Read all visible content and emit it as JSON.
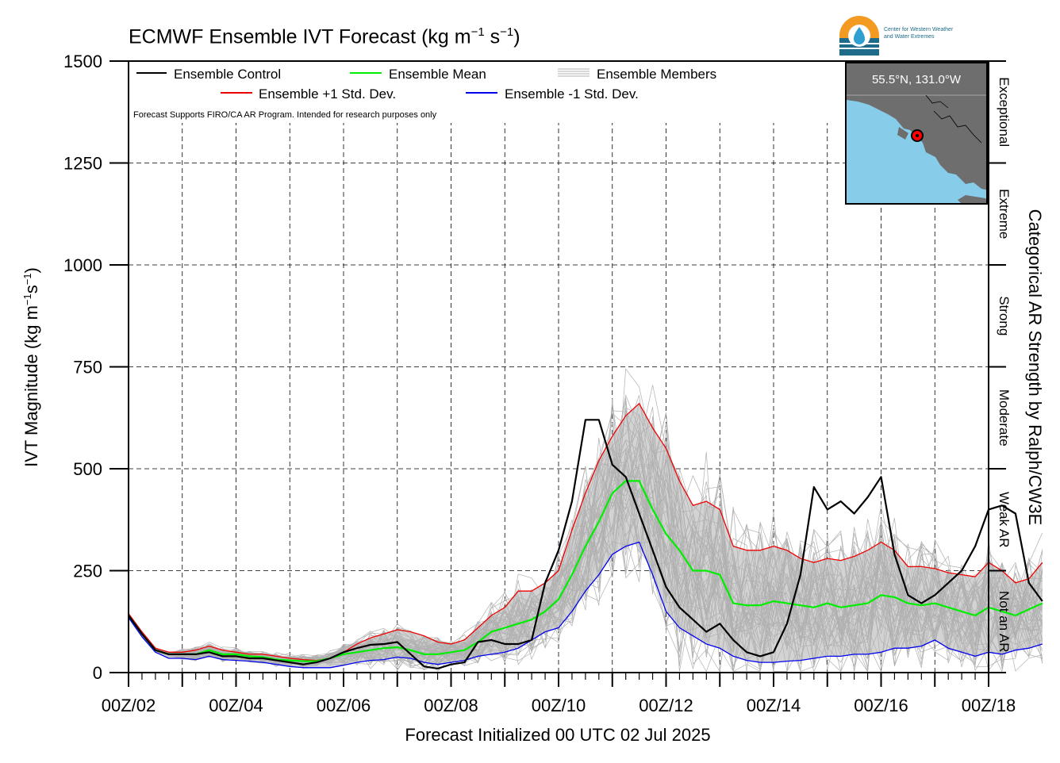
{
  "title": {
    "text": "ECMWF Ensemble IVT Forecast (kg m",
    "exp1": "−1",
    "mid": " s",
    "exp2": "−1",
    "end": ")"
  },
  "ylabel": {
    "text": "IVT Magnitude (kg m",
    "exp1": "−1",
    "mid": "s",
    "exp2": "−1",
    "end": ")"
  },
  "right_label": "Categorical AR Strength by Ralph/CW3E",
  "xlabel": "Forecast Initialized 00 UTC 02 Jul 2025",
  "disclaimer": "Forecast Supports FIRO/CA AR Program. Intended for research purposes only",
  "logo": {
    "line1": "Center for Western Weather",
    "line2": "and Water Extremes"
  },
  "inset": {
    "label": "55.5°N, 131.0°W"
  },
  "colors": {
    "control": "#000000",
    "mean": "#00ee00",
    "plus_std": "#ee0000",
    "minus_std": "#0000ee",
    "members": "#b0b0b0",
    "spread_fill": "#d3d3d3",
    "ocean": "#87cdea",
    "land": "#6e6e6e",
    "marker": "#ff0000"
  },
  "chart_data": {
    "type": "line",
    "x_unit": "days since 00Z/02",
    "xlim": [
      0,
      16
    ],
    "ylim": [
      0,
      1500
    ],
    "x_ticks": [
      0,
      2,
      4,
      6,
      8,
      10,
      12,
      14,
      16
    ],
    "x_tick_labels": [
      "00Z/02",
      "00Z/04",
      "00Z/06",
      "00Z/08",
      "00Z/10",
      "00Z/12",
      "00Z/14",
      "00Z/16",
      "00Z/18"
    ],
    "y_ticks": [
      0,
      250,
      500,
      750,
      1000,
      1250,
      1500
    ],
    "y_tick_labels": [
      "0",
      "250",
      "500",
      "750",
      "1000",
      "1250",
      "1500"
    ],
    "categories_right": [
      {
        "label": "Not an AR",
        "from": 0,
        "to": 250
      },
      {
        "label": "Weak AR",
        "from": 250,
        "to": 500
      },
      {
        "label": "Moderate",
        "from": 500,
        "to": 750
      },
      {
        "label": "Strong",
        "from": 750,
        "to": 1000
      },
      {
        "label": "Extreme",
        "from": 1000,
        "to": 1250
      },
      {
        "label": "Exceptional",
        "from": 1250,
        "to": 1500
      }
    ],
    "grid": true,
    "legend_position": "top-left",
    "legend": [
      {
        "key": "control",
        "label": "Ensemble Control"
      },
      {
        "key": "mean",
        "label": "Ensemble Mean"
      },
      {
        "key": "members",
        "label": "Ensemble Members"
      },
      {
        "key": "plus_std",
        "label": "Ensemble +1 Std. Dev."
      },
      {
        "key": "minus_std",
        "label": "Ensemble -1 Std. Dev."
      }
    ],
    "series": [
      {
        "name": "Ensemble Control",
        "key": "control",
        "x": [
          0,
          0.25,
          0.5,
          0.75,
          1,
          1.25,
          1.5,
          1.75,
          2,
          2.25,
          2.5,
          2.75,
          3,
          3.25,
          3.5,
          3.75,
          4,
          4.25,
          4.5,
          4.75,
          5,
          5.25,
          5.5,
          5.75,
          6,
          6.25,
          6.5,
          6.75,
          7,
          7.25,
          7.5,
          7.75,
          8,
          8.25,
          8.5,
          8.75,
          9,
          9.25,
          9.5,
          9.75,
          10,
          10.25,
          10.5,
          10.75,
          11,
          11.25,
          11.5,
          11.75,
          12,
          12.25,
          12.5,
          12.75,
          13,
          13.25,
          13.5,
          13.75,
          14,
          14.25,
          14.5,
          14.75,
          15,
          15.25,
          15.5,
          15.75,
          16,
          16.25,
          16.5,
          16.75,
          17
        ],
        "values": [
          140,
          95,
          55,
          45,
          45,
          45,
          50,
          40,
          40,
          35,
          35,
          30,
          25,
          20,
          25,
          35,
          50,
          60,
          68,
          70,
          75,
          45,
          15,
          10,
          20,
          25,
          75,
          80,
          70,
          70,
          80,
          220,
          300,
          420,
          620,
          620,
          510,
          480,
          390,
          300,
          210,
          160,
          130,
          100,
          120,
          80,
          50,
          40,
          50,
          120,
          240,
          455,
          400,
          420,
          390,
          430,
          480,
          290,
          190,
          170,
          190,
          220,
          250,
          310,
          400,
          410,
          390,
          220,
          175
        ]
      },
      {
        "name": "Ensemble Mean",
        "key": "mean",
        "x": [
          0,
          0.25,
          0.5,
          0.75,
          1,
          1.25,
          1.5,
          1.75,
          2,
          2.25,
          2.5,
          2.75,
          3,
          3.25,
          3.5,
          3.75,
          4,
          4.25,
          4.5,
          4.75,
          5,
          5.25,
          5.5,
          5.75,
          6,
          6.25,
          6.5,
          6.75,
          7,
          7.25,
          7.5,
          7.75,
          8,
          8.25,
          8.5,
          8.75,
          9,
          9.25,
          9.5,
          9.75,
          10,
          10.25,
          10.5,
          10.75,
          11,
          11.25,
          11.5,
          11.75,
          12,
          12.25,
          12.5,
          12.75,
          13,
          13.25,
          13.5,
          13.75,
          14,
          14.25,
          14.5,
          14.75,
          15,
          15.25,
          15.5,
          15.75,
          16,
          16.25,
          16.5,
          16.75,
          17
        ],
        "values": [
          140,
          95,
          55,
          45,
          45,
          45,
          55,
          45,
          45,
          40,
          38,
          32,
          30,
          28,
          28,
          35,
          45,
          50,
          55,
          60,
          62,
          55,
          45,
          45,
          50,
          55,
          75,
          100,
          110,
          120,
          130,
          150,
          180,
          240,
          310,
          370,
          440,
          470,
          470,
          400,
          340,
          300,
          250,
          250,
          240,
          170,
          165,
          165,
          175,
          170,
          165,
          160,
          170,
          160,
          165,
          170,
          190,
          185,
          170,
          165,
          170,
          160,
          150,
          140,
          160,
          150,
          140,
          155,
          170
        ]
      },
      {
        "name": "Ensemble +1 Std. Dev.",
        "key": "plus_std",
        "x": [
          0,
          0.25,
          0.5,
          0.75,
          1,
          1.25,
          1.5,
          1.75,
          2,
          2.25,
          2.5,
          2.75,
          3,
          3.25,
          3.5,
          3.75,
          4,
          4.25,
          4.5,
          4.75,
          5,
          5.25,
          5.5,
          5.75,
          6,
          6.25,
          6.5,
          6.75,
          7,
          7.25,
          7.5,
          7.75,
          8,
          8.25,
          8.5,
          8.75,
          9,
          9.25,
          9.5,
          9.75,
          10,
          10.25,
          10.5,
          10.75,
          11,
          11.25,
          11.5,
          11.75,
          12,
          12.25,
          12.5,
          12.75,
          13,
          13.25,
          13.5,
          13.75,
          14,
          14.25,
          14.5,
          14.75,
          15,
          15.25,
          15.5,
          15.75,
          16,
          16.25,
          16.5,
          16.75,
          17
        ],
        "values": [
          145,
          100,
          60,
          50,
          50,
          55,
          65,
          55,
          50,
          45,
          45,
          40,
          35,
          32,
          30,
          35,
          50,
          70,
          85,
          95,
          105,
          100,
          90,
          75,
          70,
          80,
          110,
          140,
          160,
          200,
          200,
          220,
          250,
          350,
          440,
          520,
          580,
          630,
          660,
          600,
          550,
          470,
          410,
          420,
          400,
          310,
          300,
          300,
          310,
          300,
          280,
          270,
          280,
          275,
          285,
          300,
          320,
          300,
          260,
          260,
          255,
          245,
          240,
          235,
          270,
          250,
          220,
          230,
          270
        ]
      },
      {
        "name": "Ensemble -1 Std. Dev.",
        "key": "minus_std",
        "x": [
          0,
          0.25,
          0.5,
          0.75,
          1,
          1.25,
          1.5,
          1.75,
          2,
          2.25,
          2.5,
          2.75,
          3,
          3.25,
          3.5,
          3.75,
          4,
          4.25,
          4.5,
          4.75,
          5,
          5.25,
          5.5,
          5.75,
          6,
          6.25,
          6.5,
          6.75,
          7,
          7.25,
          7.5,
          7.75,
          8,
          8.25,
          8.5,
          8.75,
          9,
          9.25,
          9.5,
          9.75,
          10,
          10.25,
          10.5,
          10.75,
          11,
          11.25,
          11.5,
          11.75,
          12,
          12.25,
          12.5,
          12.75,
          13,
          13.25,
          13.5,
          13.75,
          14,
          14.25,
          14.5,
          14.75,
          15,
          15.25,
          15.5,
          15.75,
          16,
          16.25,
          16.5,
          16.75,
          17
        ],
        "values": [
          135,
          88,
          50,
          35,
          35,
          32,
          40,
          32,
          30,
          28,
          25,
          20,
          15,
          12,
          12,
          12,
          18,
          25,
          30,
          32,
          38,
          35,
          25,
          20,
          25,
          30,
          40,
          45,
          50,
          60,
          80,
          100,
          110,
          150,
          200,
          240,
          290,
          310,
          320,
          240,
          150,
          110,
          90,
          70,
          60,
          40,
          30,
          25,
          25,
          28,
          30,
          35,
          40,
          40,
          45,
          45,
          50,
          60,
          60,
          65,
          80,
          60,
          50,
          40,
          50,
          45,
          55,
          60,
          70
        ]
      }
    ],
    "members_count": 50,
    "x_axis_label": "Forecast Initialized 00 UTC 02 Jul 2025",
    "y_axis_label": "IVT Magnitude (kg m−1s−1)"
  }
}
